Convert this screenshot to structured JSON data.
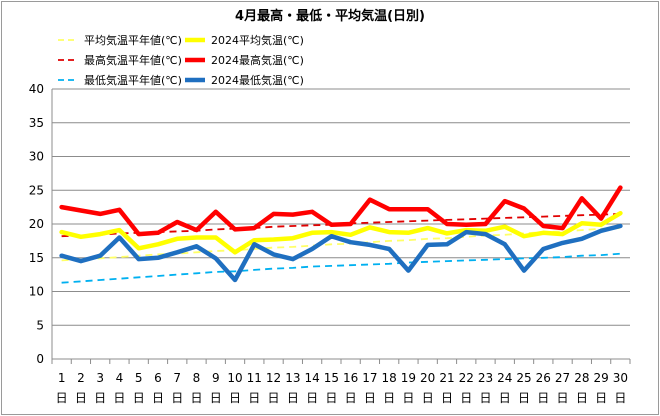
{
  "chart_data": {
    "type": "line",
    "title": "4月最高・最低・平均気温(日別)",
    "ylim": [
      0,
      40
    ],
    "yticks": [
      0,
      5,
      10,
      15,
      20,
      25,
      30,
      35,
      40
    ],
    "categories": [
      "1",
      "2",
      "3",
      "4",
      "5",
      "6",
      "7",
      "8",
      "9",
      "10",
      "11",
      "12",
      "13",
      "14",
      "15",
      "16",
      "17",
      "18",
      "19",
      "20",
      "21",
      "22",
      "23",
      "24",
      "25",
      "26",
      "27",
      "28",
      "29",
      "30"
    ],
    "day_suffix": "日",
    "grid": true,
    "legend_placement": "top-left",
    "series": [
      {
        "name": "平均気温平年値(℃)",
        "color": "#ffff66",
        "style": "dashed",
        "values": [
          14.6,
          14.8,
          14.9,
          15.1,
          15.3,
          15.5,
          15.6,
          15.8,
          16.0,
          16.1,
          16.3,
          16.5,
          16.6,
          16.8,
          17.0,
          17.1,
          17.3,
          17.5,
          17.6,
          17.8,
          17.9,
          18.1,
          18.3,
          18.4,
          18.6,
          18.8,
          18.9,
          19.1,
          19.3,
          19.4
        ]
      },
      {
        "name": "2024平均気温(℃)",
        "color": "#ffff00",
        "style": "solid",
        "values": [
          18.8,
          18.1,
          18.5,
          19.1,
          16.4,
          17.0,
          17.8,
          18.0,
          18.0,
          15.8,
          17.6,
          17.7,
          17.9,
          18.7,
          18.8,
          18.4,
          19.5,
          18.8,
          18.7,
          19.4,
          18.6,
          19.1,
          19.0,
          19.6,
          18.2,
          18.7,
          18.5,
          20.1,
          19.9,
          21.6
        ]
      },
      {
        "name": "最高気温平年値(℃)",
        "color": "#e00000",
        "style": "dashed",
        "values": [
          18.2,
          18.3,
          18.4,
          18.6,
          18.7,
          18.8,
          18.9,
          19.0,
          19.2,
          19.3,
          19.4,
          19.6,
          19.7,
          19.8,
          19.9,
          20.1,
          20.2,
          20.3,
          20.4,
          20.5,
          20.6,
          20.7,
          20.8,
          20.9,
          21.0,
          21.1,
          21.2,
          21.3,
          21.4,
          21.5
        ]
      },
      {
        "name": "2024最高気温(℃)",
        "color": "#ff0000",
        "style": "solid",
        "values": [
          22.5,
          22.0,
          21.5,
          22.1,
          18.5,
          18.7,
          20.3,
          19.1,
          21.8,
          19.2,
          19.4,
          21.5,
          21.4,
          21.8,
          19.9,
          20.0,
          23.6,
          22.2,
          22.2,
          22.2,
          20.0,
          19.9,
          20.0,
          23.4,
          22.3,
          19.7,
          19.4,
          23.8,
          20.8,
          25.4
        ]
      },
      {
        "name": "最低気温平年値(℃)",
        "color": "#00b0f0",
        "style": "dashed",
        "values": [
          11.3,
          11.5,
          11.7,
          11.9,
          12.1,
          12.3,
          12.5,
          12.7,
          12.9,
          13.0,
          13.2,
          13.4,
          13.5,
          13.7,
          13.8,
          13.9,
          14.0,
          14.1,
          14.3,
          14.4,
          14.5,
          14.6,
          14.7,
          14.8,
          14.9,
          15.0,
          15.1,
          15.3,
          15.4,
          15.6
        ]
      },
      {
        "name": "2024最低気温(℃)",
        "color": "#1f6fc0",
        "style": "solid",
        "values": [
          15.3,
          14.5,
          15.3,
          18.0,
          14.8,
          15.0,
          15.8,
          16.7,
          14.9,
          11.7,
          17.0,
          15.5,
          14.8,
          16.3,
          18.2,
          17.3,
          16.9,
          16.3,
          13.1,
          16.9,
          17.0,
          18.8,
          18.5,
          17.0,
          13.1,
          16.3,
          17.2,
          17.8,
          19.0,
          19.7
        ]
      }
    ]
  }
}
